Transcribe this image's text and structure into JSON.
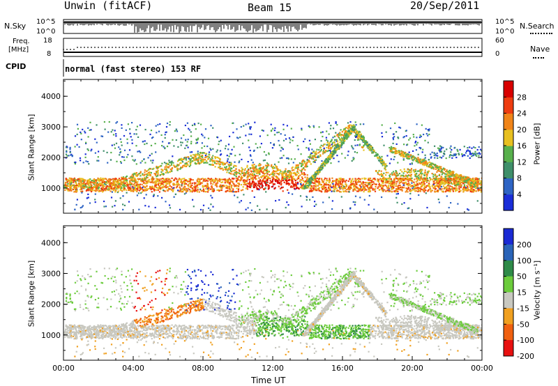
{
  "header": {
    "site": "Unwin (fitACF)",
    "beam": "Beam 15",
    "date": "20/Sep/2011"
  },
  "strips": {
    "nsky": {
      "left_label": "N.Sky",
      "left_ticks": [
        "10^5",
        "10^0"
      ],
      "right_ticks": [
        "10^5",
        "10^0"
      ],
      "right_label": "N.Search"
    },
    "freq": {
      "left_label_1": "Freq.",
      "left_label_2": "[MHz]",
      "left_ticks": [
        "18",
        "8"
      ],
      "right_ticks": [
        "60",
        "0"
      ],
      "right_label": "Nave"
    },
    "cpid": {
      "label": "CPID",
      "text": "normal (fast stereo) 153 RF"
    }
  },
  "x_axis": {
    "label": "Time UT",
    "ticks": [
      "00:00",
      "04:00",
      "08:00",
      "12:00",
      "16:00",
      "20:00",
      "00:00"
    ]
  },
  "chart_data": [
    {
      "type": "heatmap",
      "name": "power-panel",
      "ylabel": "Slant Range [km]",
      "yticks": [
        1000,
        2000,
        3000,
        4000
      ],
      "ylim": [
        180,
        4550
      ],
      "xlim_hours": [
        0,
        24
      ],
      "colorbar": {
        "label": "Power [dB]",
        "ticks": [
          "4",
          "8",
          "12",
          "16",
          "20",
          "24",
          "28"
        ],
        "colors": [
          "#1a2dd8",
          "#2e64c4",
          "#3f8f6a",
          "#58b04c",
          "#e8c020",
          "#f08418",
          "#ee3c10",
          "#d80000"
        ]
      }
    },
    {
      "type": "heatmap",
      "name": "velocity-panel",
      "ylabel": "Slant Range [km]",
      "yticks": [
        1000,
        2000,
        3000,
        4000
      ],
      "ylim": [
        180,
        4550
      ],
      "xlim_hours": [
        0,
        24
      ],
      "colorbar": {
        "label": "Velocity [m s⁻¹]",
        "ticks": [
          "200",
          "100",
          "50",
          "15",
          "-15",
          "-50",
          "-100",
          "-200"
        ],
        "colors": [
          "#1a2ad4",
          "#2a64b8",
          "#2e8a48",
          "#6ccc3c",
          "#c8c8c0",
          "#f0a020",
          "#f06010",
          "#e81010"
        ]
      }
    }
  ]
}
